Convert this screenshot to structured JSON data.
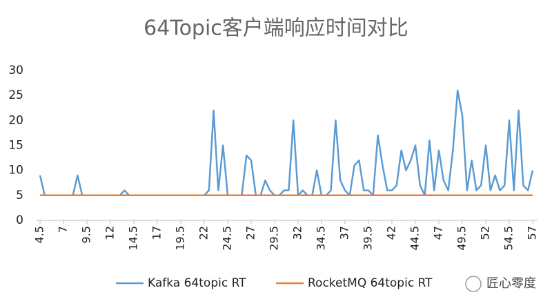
{
  "chart_data": {
    "type": "line",
    "title": "64Topic客户端响应时间对比",
    "x": [
      4.5,
      5,
      5.5,
      6,
      6.5,
      7,
      7.5,
      8,
      8.5,
      9,
      9.5,
      10,
      10.5,
      11,
      11.5,
      12,
      12.5,
      13,
      13.5,
      14,
      14.5,
      15,
      15.5,
      16,
      16.5,
      17,
      17.5,
      18,
      18.5,
      19,
      19.5,
      20,
      20.5,
      21,
      21.5,
      22,
      22.5,
      23,
      23.5,
      24,
      24.5,
      25,
      25.5,
      26,
      26.5,
      27,
      27.5,
      28,
      28.5,
      29,
      29.5,
      30,
      30.5,
      31,
      31.5,
      32,
      32.5,
      33,
      33.5,
      34,
      34.5,
      35,
      35.5,
      36,
      36.5,
      37,
      37.5,
      38,
      38.5,
      39,
      39.5,
      40,
      40.5,
      41,
      41.5,
      42,
      42.5,
      43,
      43.5,
      44,
      44.5,
      45,
      45.5,
      46,
      46.5,
      47,
      47.5,
      48,
      48.5,
      49,
      49.5,
      50,
      50.5,
      51,
      51.5,
      52,
      52.5,
      53,
      53.5,
      54,
      54.5,
      55,
      55.5,
      56,
      56.5,
      57
    ],
    "series": [
      {
        "name": "Kafka 64topic RT",
        "color": "#5b9bd5",
        "values": [
          9,
          5,
          5,
          5,
          5,
          5,
          5,
          5,
          9,
          5,
          5,
          5,
          5,
          5,
          5,
          5,
          5,
          5,
          6,
          5,
          5,
          5,
          5,
          5,
          5,
          5,
          5,
          5,
          5,
          5,
          5,
          5,
          5,
          5,
          5,
          5,
          6,
          22,
          6,
          15,
          5,
          5,
          5,
          5,
          13,
          12,
          5,
          5,
          8,
          6,
          5,
          5,
          6,
          6,
          20,
          5,
          6,
          5,
          5,
          10,
          5,
          5,
          6,
          20,
          8,
          6,
          5,
          11,
          12,
          6,
          6,
          5,
          17,
          11,
          6,
          6,
          7,
          14,
          10,
          12,
          15,
          7,
          5,
          16,
          6,
          14,
          8,
          6,
          14,
          26,
          21,
          6,
          12,
          6,
          7,
          15,
          6,
          9,
          6,
          7,
          20,
          6,
          22,
          7,
          6,
          10
        ]
      },
      {
        "name": "RocketMQ 64topic RT",
        "color": "#ed7d31",
        "values": [
          5,
          5,
          5,
          5,
          5,
          5,
          5,
          5,
          5,
          5,
          5,
          5,
          5,
          5,
          5,
          5,
          5,
          5,
          5,
          5,
          5,
          5,
          5,
          5,
          5,
          5,
          5,
          5,
          5,
          5,
          5,
          5,
          5,
          5,
          5,
          5,
          5,
          5,
          5,
          5,
          5,
          5,
          5,
          5,
          5,
          5,
          5,
          5,
          5,
          5,
          5,
          5,
          5,
          5,
          5,
          5,
          5,
          5,
          5,
          5,
          5,
          5,
          5,
          5,
          5,
          5,
          5,
          5,
          5,
          5,
          5,
          5,
          5,
          5,
          5,
          5,
          5,
          5,
          5,
          5,
          5,
          5,
          5,
          5,
          5,
          5,
          5,
          5,
          5,
          5,
          5,
          5,
          5,
          5,
          5,
          5,
          5,
          5,
          5,
          5,
          5,
          5,
          5,
          5,
          5,
          5
        ]
      }
    ],
    "xlim": [
      4.5,
      57
    ],
    "xticks": [
      4.5,
      7,
      9.5,
      12,
      14.5,
      17,
      19.5,
      22,
      24.5,
      27,
      29.5,
      32,
      34.5,
      37,
      39.5,
      42,
      44.5,
      47,
      49.5,
      52,
      54.5,
      57
    ],
    "ylim": [
      0,
      30
    ],
    "yticks": [
      0,
      5,
      10,
      15,
      20,
      25,
      30
    ],
    "grid": false,
    "legend": "bottom"
  },
  "watermark": "匠心零度"
}
